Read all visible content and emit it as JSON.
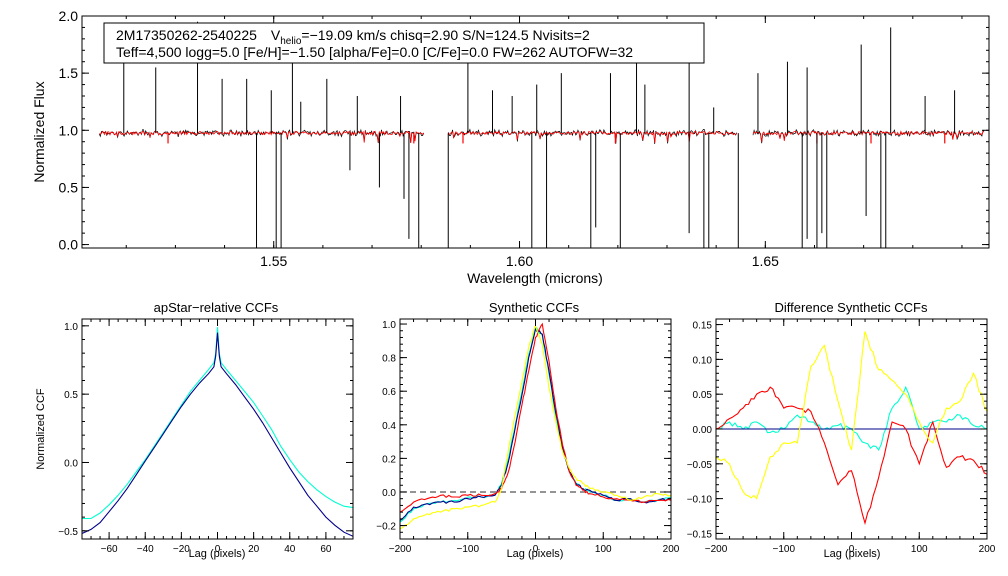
{
  "top_panel": {
    "info_line1_id": "2M17350262-2540225",
    "info_line1_v": "V",
    "info_line1_vsub": "helio",
    "info_line1_vval": "=−19.09 km/s  chisq=2.90  S/N=124.5  Nvisits=2",
    "info_line2": "Teff=4,500 logg=5.0 [Fe/H]=−1.50 [alpha/Fe]=0.0 [C/Fe]=0.0 FW=262 AUTOFW=32"
  },
  "chart_data": [
    {
      "id": "spectrum",
      "type": "line",
      "title": "",
      "xlabel": "Wavelength (microns)",
      "ylabel": "Normalized Flux",
      "xlim": [
        1.511,
        1.6955
      ],
      "ylim": [
        -0.03,
        2.0
      ],
      "xticks": [
        1.55,
        1.6,
        1.65
      ],
      "xtick_labels": [
        "1.55",
        "1.60",
        "1.65"
      ],
      "yticks": [
        0.0,
        0.5,
        1.0,
        1.5,
        2.0
      ],
      "ytick_labels": [
        "0.0",
        "0.5",
        "1.0",
        "1.5",
        "2.0"
      ],
      "chips": [
        [
          1.5145,
          1.5805
        ],
        [
          1.5855,
          1.6442
        ],
        [
          1.6475,
          1.6945
        ]
      ],
      "continuum": 0.975,
      "series": [
        {
          "name": "observed",
          "color": "#000000"
        },
        {
          "name": "model",
          "color": "#ff0000"
        }
      ],
      "emission_spikes": [
        1.5195,
        1.526,
        1.5345,
        1.5395,
        1.5445,
        1.5495,
        1.5538,
        1.5555,
        1.5608,
        1.567,
        1.5758,
        1.5895,
        1.5945,
        1.5985,
        1.6035,
        1.6085,
        1.6185,
        1.6238,
        1.6255,
        1.6345,
        1.6395,
        1.6485,
        1.6545,
        1.6585,
        1.6695,
        1.6755,
        1.6825,
        1.6885
      ],
      "spike_heights": [
        1.9,
        1.55,
        1.95,
        1.45,
        1.45,
        1.35,
        1.6,
        1.25,
        1.45,
        1.3,
        1.3,
        1.9,
        1.35,
        1.3,
        1.4,
        1.5,
        1.5,
        1.75,
        1.4,
        1.65,
        1.2,
        1.5,
        1.6,
        1.55,
        1.75,
        1.9,
        1.3,
        1.35
      ],
      "absorption_dips": [
        1.5465,
        1.5505,
        1.5515,
        1.5655,
        1.5715,
        1.5765,
        1.5775,
        1.5795,
        1.5855,
        1.6025,
        1.6055,
        1.6145,
        1.6155,
        1.6205,
        1.6345,
        1.6375,
        1.6385,
        1.6445,
        1.6575,
        1.6585,
        1.6605,
        1.6615,
        1.6625,
        1.6705,
        1.6735,
        1.6745
      ],
      "dip_depths": [
        -0.03,
        -0.03,
        -0.03,
        0.65,
        0.5,
        0.4,
        0.05,
        -0.03,
        -0.03,
        -0.03,
        -0.03,
        -0.03,
        0.15,
        -0.03,
        0.1,
        -0.03,
        -0.03,
        -0.03,
        -0.03,
        0.05,
        -0.03,
        0.1,
        -0.03,
        0.25,
        -0.03,
        -0.03
      ]
    },
    {
      "id": "apstar_ccf",
      "type": "line",
      "title": "apStar−relative CCFs",
      "xlabel": "Lag (pixels)",
      "ylabel": "Normalized CCF",
      "xlim": [
        -75,
        75
      ],
      "ylim": [
        -0.56,
        1.05
      ],
      "xticks": [
        -60,
        -40,
        -20,
        0,
        20,
        40,
        60
      ],
      "xtick_labels": [
        "−60",
        "−40",
        "−20",
        "0",
        "20",
        "40",
        "60"
      ],
      "yticks": [
        -0.5,
        0.0,
        0.5,
        1.0
      ],
      "ytick_labels": [
        "−0.5",
        "0.0",
        "0.5",
        "1.0"
      ],
      "x": [
        -75,
        -70,
        -65,
        -60,
        -55,
        -50,
        -45,
        -40,
        -35,
        -30,
        -25,
        -20,
        -15,
        -10,
        -5,
        -2,
        -1,
        0,
        1,
        2,
        5,
        10,
        15,
        20,
        25,
        30,
        35,
        40,
        45,
        50,
        55,
        60,
        65,
        70,
        75
      ],
      "series": [
        {
          "name": "visit 1",
          "color": "#00ffd0",
          "values": [
            -0.41,
            -0.41,
            -0.37,
            -0.31,
            -0.24,
            -0.16,
            -0.07,
            0.02,
            0.12,
            0.22,
            0.32,
            0.42,
            0.52,
            0.6,
            0.68,
            0.73,
            0.8,
            0.99,
            0.8,
            0.73,
            0.68,
            0.6,
            0.52,
            0.44,
            0.34,
            0.24,
            0.12,
            0.02,
            -0.07,
            -0.14,
            -0.2,
            -0.25,
            -0.29,
            -0.32,
            -0.33
          ]
        },
        {
          "name": "visit 2",
          "color": "#00008b",
          "values": [
            -0.52,
            -0.49,
            -0.44,
            -0.36,
            -0.28,
            -0.19,
            -0.09,
            0.01,
            0.11,
            0.21,
            0.31,
            0.41,
            0.5,
            0.58,
            0.65,
            0.7,
            0.78,
            0.95,
            0.78,
            0.7,
            0.65,
            0.57,
            0.48,
            0.39,
            0.29,
            0.18,
            0.07,
            -0.04,
            -0.14,
            -0.24,
            -0.32,
            -0.4,
            -0.46,
            -0.51,
            -0.54
          ]
        }
      ]
    },
    {
      "id": "synthetic_ccf",
      "type": "line",
      "title": "Synthetic CCFs",
      "xlabel": "Lag (pixels)",
      "ylabel": "",
      "xlim": [
        -200,
        200
      ],
      "ylim": [
        -0.28,
        1.03
      ],
      "xticks": [
        -200,
        -100,
        0,
        100,
        200
      ],
      "xtick_labels": [
        "−200",
        "−100",
        "0",
        "100",
        "200"
      ],
      "yticks": [
        -0.2,
        0.0,
        0.2,
        0.4,
        0.6,
        0.8,
        1.0
      ],
      "ytick_labels": [
        "−0.2",
        "0.0",
        "0.2",
        "0.4",
        "0.6",
        "0.8",
        "1.0"
      ],
      "reference_line": 0.0,
      "x": [
        -200,
        -180,
        -160,
        -140,
        -120,
        -100,
        -80,
        -60,
        -50,
        -40,
        -30,
        -20,
        -10,
        0,
        10,
        20,
        30,
        40,
        50,
        60,
        70,
        80,
        100,
        120,
        140,
        160,
        180,
        200
      ],
      "series": [
        {
          "name": "synth 1",
          "color": "#00ffd0",
          "values": [
            -0.18,
            -0.1,
            -0.07,
            -0.06,
            -0.05,
            -0.03,
            -0.03,
            -0.02,
            0.05,
            0.2,
            0.4,
            0.6,
            0.82,
            0.98,
            0.93,
            0.7,
            0.45,
            0.25,
            0.12,
            0.05,
            0.02,
            0.0,
            -0.02,
            -0.05,
            -0.04,
            -0.06,
            -0.05,
            -0.03
          ]
        },
        {
          "name": "synth 2",
          "color": "#00008b",
          "values": [
            -0.17,
            -0.09,
            -0.07,
            -0.06,
            -0.06,
            -0.04,
            -0.03,
            -0.02,
            0.04,
            0.18,
            0.38,
            0.58,
            0.8,
            0.97,
            0.94,
            0.72,
            0.47,
            0.26,
            0.12,
            0.05,
            0.02,
            0.01,
            -0.02,
            -0.05,
            -0.04,
            -0.06,
            -0.05,
            -0.04
          ]
        },
        {
          "name": "synth 3",
          "color": "#ff0000",
          "values": [
            -0.12,
            -0.06,
            -0.04,
            -0.02,
            -0.03,
            -0.02,
            -0.02,
            -0.01,
            0.02,
            0.12,
            0.3,
            0.52,
            0.72,
            0.92,
            1.0,
            0.78,
            0.5,
            0.28,
            0.12,
            0.04,
            0.01,
            -0.01,
            -0.03,
            -0.04,
            -0.05,
            -0.06,
            -0.05,
            -0.05
          ]
        },
        {
          "name": "synth 4",
          "color": "#ffff00",
          "values": [
            -0.22,
            -0.16,
            -0.13,
            -0.12,
            -0.1,
            -0.09,
            -0.08,
            -0.06,
            0.02,
            0.25,
            0.46,
            0.66,
            0.86,
            0.99,
            0.88,
            0.62,
            0.42,
            0.24,
            0.14,
            0.08,
            0.05,
            0.02,
            0.0,
            -0.02,
            -0.05,
            -0.03,
            -0.01,
            -0.02
          ]
        }
      ]
    },
    {
      "id": "difference_ccf",
      "type": "line",
      "title": "Difference Synthetic CCFs",
      "xlabel": "Lag (pixels)",
      "ylabel": "",
      "xlim": [
        -200,
        200
      ],
      "ylim": [
        -0.158,
        0.158
      ],
      "xticks": [
        -200,
        -100,
        0,
        100,
        200
      ],
      "xtick_labels": [
        "−200",
        "−100",
        "0",
        "100",
        "200"
      ],
      "yticks": [
        -0.15,
        -0.1,
        -0.05,
        0.0,
        0.05,
        0.1,
        0.15
      ],
      "ytick_labels": [
        "−0.15",
        "−0.10",
        "−0.05",
        "0.00",
        "0.05",
        "0.10",
        "0.15"
      ],
      "x": [
        -200,
        -180,
        -160,
        -140,
        -120,
        -100,
        -80,
        -60,
        -40,
        -20,
        0,
        20,
        40,
        60,
        80,
        100,
        120,
        140,
        160,
        180,
        200
      ],
      "series": [
        {
          "name": "diff 1",
          "color": "#00ffd0",
          "values": [
            0.0,
            0.01,
            0.0,
            0.01,
            -0.005,
            0.0,
            0.02,
            0.01,
            0.0,
            0.005,
            0.0,
            -0.02,
            -0.03,
            0.03,
            0.06,
            0.0,
            0.01,
            0.01,
            0.02,
            0.005,
            0.0
          ]
        },
        {
          "name": "diff 2",
          "color": "#00008b",
          "values": [
            0.0,
            0.0,
            0.0,
            0.0,
            0.0,
            0.0,
            0.0,
            0.0,
            0.0,
            0.0,
            0.0,
            0.0,
            0.0,
            0.0,
            0.0,
            0.0,
            0.0,
            0.0,
            0.0,
            0.0,
            0.0
          ]
        },
        {
          "name": "diff 3",
          "color": "#ff0000",
          "values": [
            0.0,
            0.015,
            0.03,
            0.05,
            0.06,
            0.03,
            0.03,
            0.025,
            -0.02,
            -0.08,
            -0.06,
            -0.135,
            -0.07,
            0.01,
            0.0,
            -0.05,
            0.01,
            -0.055,
            -0.04,
            -0.045,
            -0.065
          ]
        },
        {
          "name": "diff 4",
          "color": "#ffff00",
          "values": [
            -0.04,
            -0.05,
            -0.09,
            -0.1,
            -0.04,
            -0.02,
            -0.02,
            0.09,
            0.12,
            0.04,
            -0.03,
            0.14,
            0.085,
            0.07,
            0.05,
            0.01,
            -0.02,
            0.03,
            0.04,
            0.08,
            0.025
          ]
        }
      ]
    }
  ]
}
